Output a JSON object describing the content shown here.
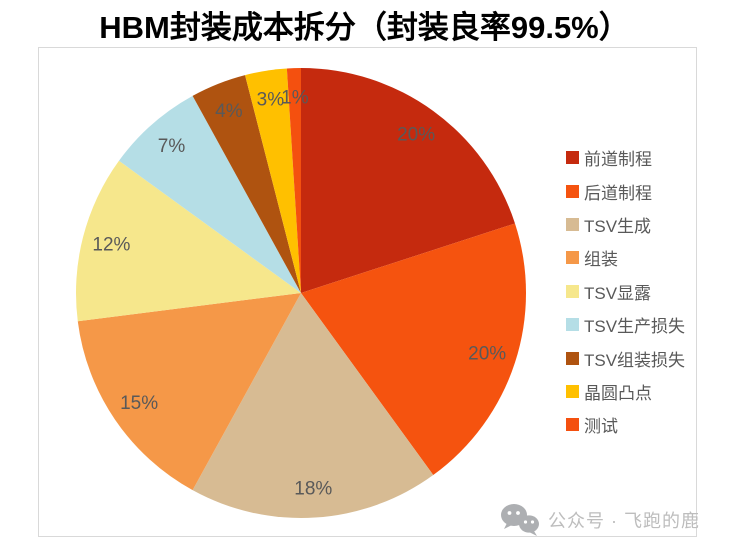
{
  "title": "HBM封装成本拆分（封装良率99.5%）",
  "watermark": {
    "icon": "wechat-icon",
    "text": "公众号 · 飞跑的鹿"
  },
  "colors": {
    "panel_border": "#D9D9D9",
    "data_label": "#595959",
    "legend_text": "#595959",
    "title_text": "#000000",
    "watermark_gray": "#BDBDBD",
    "watermark_icon_gray": "#ADAFB2"
  },
  "chart_data": {
    "type": "pie",
    "title": "HBM封装成本拆分（封装良率99.5%）",
    "direction": "clockwise",
    "start_angle_deg": 0,
    "legend_position": "right",
    "grid": false,
    "slices": [
      {
        "label": "前道制程",
        "value_pct": 20,
        "data_label": "20%",
        "color": "#C52A0E"
      },
      {
        "label": "后道制程",
        "value_pct": 20,
        "data_label": "20%",
        "color": "#F5530F"
      },
      {
        "label": "TSV生成",
        "value_pct": 18,
        "data_label": "18%",
        "color": "#D7BB93"
      },
      {
        "label": "组装",
        "value_pct": 15,
        "data_label": "15%",
        "color": "#F59848"
      },
      {
        "label": "TSV显露",
        "value_pct": 12,
        "data_label": "12%",
        "color": "#F6E78C"
      },
      {
        "label": "TSV生产损失",
        "value_pct": 7,
        "data_label": "7%",
        "color": "#B5DEE6"
      },
      {
        "label": "TSV组装损失",
        "value_pct": 4,
        "data_label": "4%",
        "color": "#AF5310"
      },
      {
        "label": "晶圆凸点",
        "value_pct": 3,
        "data_label": "3%",
        "color": "#FFC000"
      },
      {
        "label": "测试",
        "value_pct": 1,
        "data_label": "1%",
        "color": "#F4500F"
      }
    ]
  }
}
